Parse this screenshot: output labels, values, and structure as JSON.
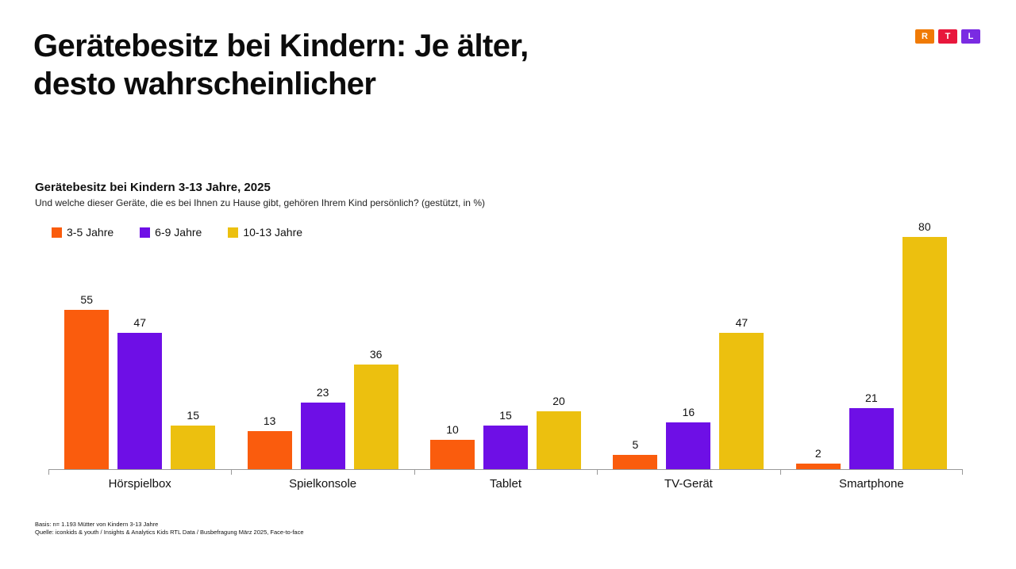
{
  "header": {
    "title_line1": "Gerätebesitz bei Kindern: Je älter,",
    "title_line2": "desto wahrscheinlicher",
    "logo": {
      "letters": [
        "R",
        "T",
        "L"
      ],
      "colors": [
        "#F07A05",
        "#E8173C",
        "#7A2BE2"
      ]
    }
  },
  "chart": {
    "title": "Gerätebesitz bei Kindern 3-13 Jahre, 2025",
    "subtitle": "Und welche dieser Geräte, die es bei Ihnen zu Hause gibt, gehören Ihrem Kind persönlich? (gestützt, in %)"
  },
  "chart_data": {
    "type": "bar",
    "title": "Gerätebesitz bei Kindern 3-13 Jahre, 2025",
    "subtitle": "Und welche dieser Geräte, die es bei Ihnen zu Hause gibt, gehören Ihrem Kind persönlich? (gestützt, in %)",
    "unit": "%",
    "categories": [
      "Hörspielbox",
      "Spielkonsole",
      "Tablet",
      "TV-Gerät",
      "Smartphone"
    ],
    "series": [
      {
        "name": "3-5 Jahre",
        "color": "#FA5C0D",
        "values": [
          55,
          13,
          10,
          5,
          2
        ]
      },
      {
        "name": "6-9 Jahre",
        "color": "#6E0FE6",
        "values": [
          47,
          23,
          15,
          16,
          21
        ]
      },
      {
        "name": "10-13 Jahre",
        "color": "#ECC00F",
        "values": [
          15,
          36,
          20,
          47,
          80
        ]
      }
    ],
    "ylim": [
      0,
      80
    ],
    "value_labels": true,
    "grid": false,
    "legend_position": "top-left",
    "axis_color": "#999999"
  },
  "footer": {
    "line1": "Basis: n= 1.193 Mütter von Kindern 3-13 Jahre",
    "line2": "Quelle: iconkids & youth / Insights & Analytics Kids RTL Data / Busbefragung März 2025, Face-to-face"
  }
}
